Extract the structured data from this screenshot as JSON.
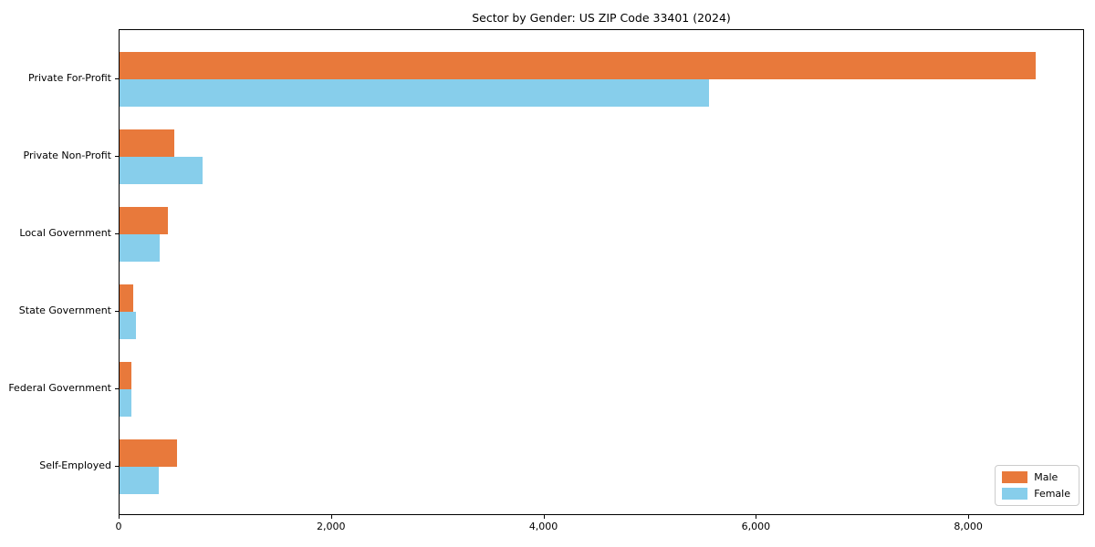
{
  "title": "Sector by Gender: US ZIP Code 33401 (2024)",
  "chart_data": {
    "type": "bar",
    "orientation": "horizontal",
    "title": "Sector by Gender: US ZIP Code 33401 (2024)",
    "xlabel": "",
    "ylabel": "",
    "categories": [
      "Private For-Profit",
      "Private Non-Profit",
      "Local Government",
      "State Government",
      "Federal Government",
      "Self-Employed"
    ],
    "series": [
      {
        "name": "Male",
        "color": "#E8793B",
        "values": [
          8640,
          520,
          460,
          130,
          115,
          545
        ]
      },
      {
        "name": "Female",
        "color": "#87CEEB",
        "values": [
          5560,
          780,
          380,
          155,
          110,
          370
        ]
      }
    ],
    "xlim": [
      0,
      9090
    ],
    "x_ticks": [
      0,
      2000,
      4000,
      6000,
      8000
    ],
    "x_tick_labels": [
      "0",
      "2,000",
      "4,000",
      "6,000",
      "8,000"
    ],
    "grid": false,
    "legend_position": "lower right"
  },
  "legend": {
    "items": [
      {
        "label": "Male",
        "color": "#E8793B"
      },
      {
        "label": "Female",
        "color": "#87CEEB"
      }
    ]
  }
}
